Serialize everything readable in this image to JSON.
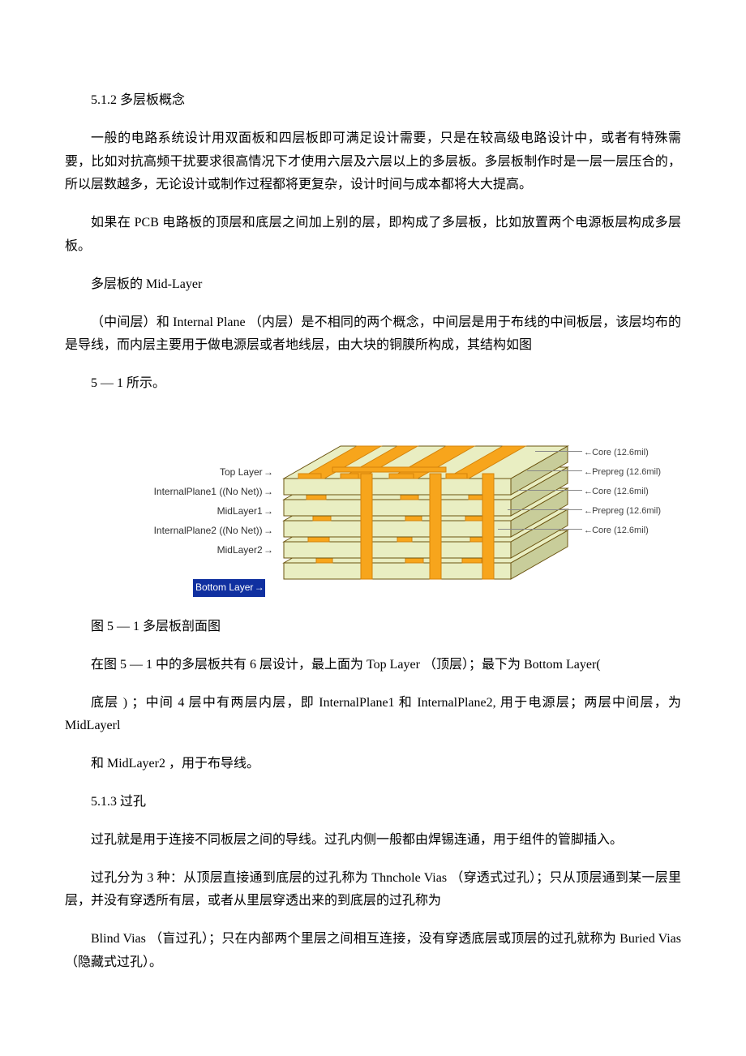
{
  "section_512_title": "5.1.2 多层板概念",
  "para1": "一般的电路系统设计用双面板和四层板即可满足设计需要，只是在较高级电路设计中，或者有特殊需要，比如对抗高频干扰要求很高情况下才使用六层及六层以上的多层板。多层板制作时是一层一层压合的，所以层数越多，无论设计或制作过程都将更复杂，设计时间与成本都将大大提高。",
  "para2": "如果在 PCB 电路板的顶层和底层之间加上别的层，即构成了多层板，比如放置两个电源板层构成多层板。",
  "para3": "多层板的 Mid-Layer",
  "para4": "（中间层）和 Internal Plane （内层）是不相同的两个概念，中间层是用于布线的中间板层，该层均布的是导线，而内层主要用于做电源层或者地线层，由大块的铜膜所构成，其结构如图",
  "para5": "5 — 1 所示。",
  "fig_caption": "图 5 — 1 多层板剖面图",
  "para6": "在图 5 — 1 中的多层板共有 6 层设计，最上面为 Top Layer （顶层）；最下为 Bottom Layer(",
  "para7": "底层 ) ；中间 4 层中有两层内层，即 InternalPlane1 和 InternalPlane2, 用于电源层；两层中间层，为 MidLayerl",
  "para8": "和 MidLayer2 ，用于布导线。",
  "section_513_title": "5.1.3 过孔",
  "para9": "过孔就是用于连接不同板层之间的导线。过孔内侧一般都由焊锡连通，用于组件的管脚插入。",
  "para10": "过孔分为 3 种：从顶层直接通到底层的过孔称为 Thnchole Vias （穿透式过孔）；只从顶层通到某一层里层，并没有穿透所有层，或者从里层穿透出来的到底层的过孔称为",
  "para11": "Blind Vias （盲过孔）；只在内部两个里层之间相互连接，没有穿透底层或顶层的过孔就称为 Buried Vias （隐藏式过孔）。",
  "diagram": {
    "left_labels": [
      "Top Layer",
      "InternalPlane1 ((No Net))",
      "MidLayer1",
      "InternalPlane2 ((No Net))",
      "MidLayer2"
    ],
    "bottom_label": "Bottom Layer",
    "right_labels": [
      "Core (12.6mil)",
      "Prepreg (12.6mil)",
      "Core (12.6mil)",
      "Prepreg (12.6mil)",
      "Core (12.6mil)"
    ],
    "colors": {
      "copper": "#f7a51c",
      "copper_dark": "#d4830a",
      "core": "#e9eec2",
      "core_edge": "#c8cd9a",
      "outline": "#6b5410"
    },
    "layers": 6,
    "via_positions": [
      95,
      180,
      245
    ]
  }
}
